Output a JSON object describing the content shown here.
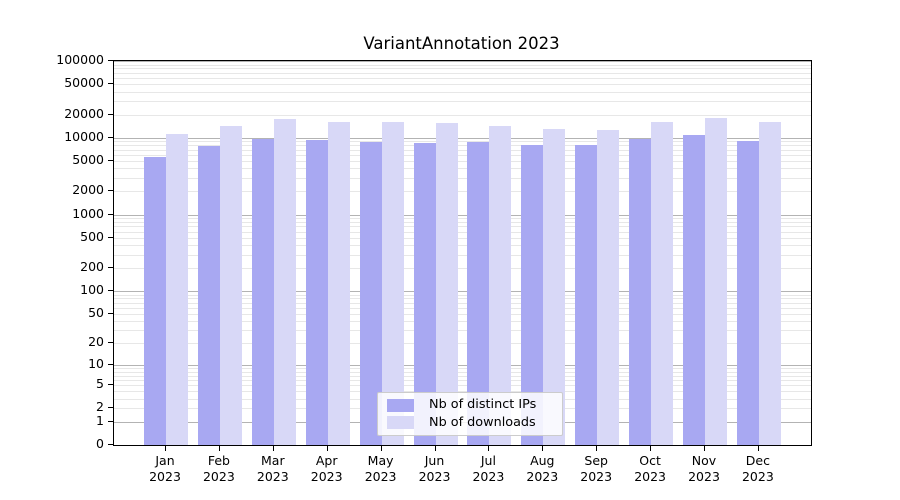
{
  "title": "VariantAnnotation 2023",
  "colors": {
    "background": "#ffffff",
    "axis": "#000000",
    "grid_major": "#b3b3b3",
    "grid_minor": "#e7e7e7",
    "bar_distinct_ips": "#a8a8f2",
    "bar_downloads": "#d8d8f7",
    "legend_border": "#cccccc",
    "text": "#000000"
  },
  "chart_data": {
    "type": "bar",
    "title": "VariantAnnotation 2023",
    "categories": [
      "Jan 2023",
      "Feb 2023",
      "Mar 2023",
      "Apr 2023",
      "May 2023",
      "Jun 2023",
      "Jul 2023",
      "Aug 2023",
      "Sep 2023",
      "Oct 2023",
      "Nov 2023",
      "Dec 2023"
    ],
    "series": [
      {
        "name": "Nb of distinct IPs",
        "color": "#a8a8f2",
        "values": [
          5700,
          7900,
          9600,
          9300,
          8800,
          8600,
          8700,
          8100,
          8000,
          9600,
          10900,
          9100
        ]
      },
      {
        "name": "Nb of downloads",
        "color": "#d8d8f7",
        "values": [
          11200,
          14100,
          17600,
          16000,
          16000,
          15400,
          14400,
          13000,
          12700,
          15900,
          18400,
          15900
        ]
      }
    ],
    "xlabel": "",
    "ylabel": "",
    "yscale": "log10(value+1)",
    "ylim": [
      0,
      100000
    ],
    "yticks": [
      0,
      1,
      2,
      5,
      10,
      20,
      50,
      100,
      200,
      500,
      1000,
      2000,
      5000,
      10000,
      20000,
      50000,
      100000
    ],
    "grid": "horizontal major+minor",
    "legend_position": "lower center"
  }
}
